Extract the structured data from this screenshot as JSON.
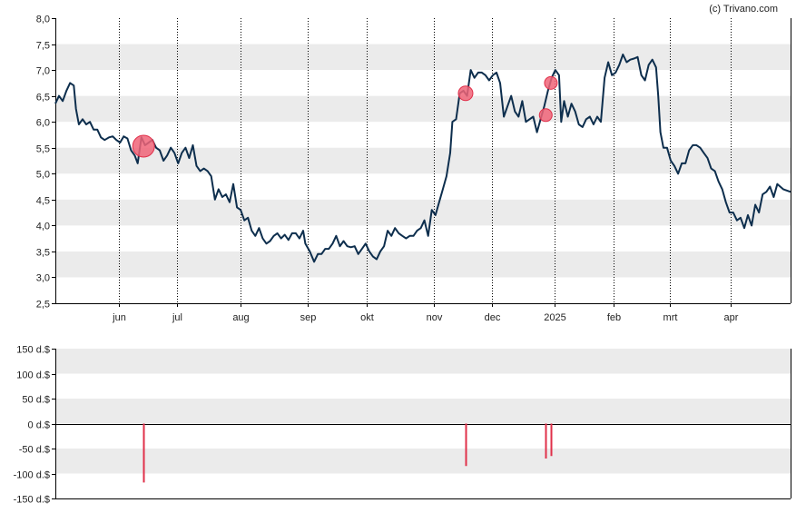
{
  "credit": "(c) Trivano.com",
  "colors": {
    "price_line": "#0d2e4d",
    "band": "#ebebeb",
    "marker_fill": "#f06478",
    "marker_stroke": "#e0304a",
    "volume_bar": "#e0304a",
    "axis": "#000000",
    "grid_dotted": "#000000"
  },
  "chart_data": [
    {
      "type": "line",
      "title": "",
      "xlabel": "",
      "ylabel": "",
      "ylim": [
        2.5,
        8.0
      ],
      "y_ticks": [
        "2,5",
        "3,0",
        "3,5",
        "4,0",
        "4,5",
        "5,0",
        "5,5",
        "6,0",
        "6,5",
        "7,0",
        "7,5",
        "8,0"
      ],
      "x_ticks": [
        {
          "label": "jun",
          "t": 0.087
        },
        {
          "label": "jul",
          "t": 0.165
        },
        {
          "label": "aug",
          "t": 0.252
        },
        {
          "label": "sep",
          "t": 0.343
        },
        {
          "label": "okt",
          "t": 0.423
        },
        {
          "label": "nov",
          "t": 0.515
        },
        {
          "label": "dec",
          "t": 0.594
        },
        {
          "label": "2025",
          "t": 0.679
        },
        {
          "label": "feb",
          "t": 0.759
        },
        {
          "label": "mrt",
          "t": 0.836
        },
        {
          "label": "apr",
          "t": 0.918
        }
      ],
      "grid": true,
      "series": [
        {
          "points": [
            [
              0.0,
              6.35
            ],
            [
              0.005,
              6.5
            ],
            [
              0.01,
              6.4
            ],
            [
              0.015,
              6.6
            ],
            [
              0.02,
              6.75
            ],
            [
              0.025,
              6.7
            ],
            [
              0.028,
              6.25
            ],
            [
              0.032,
              5.95
            ],
            [
              0.037,
              6.05
            ],
            [
              0.042,
              5.95
            ],
            [
              0.047,
              6.0
            ],
            [
              0.052,
              5.85
            ],
            [
              0.057,
              5.85
            ],
            [
              0.062,
              5.7
            ],
            [
              0.067,
              5.65
            ],
            [
              0.073,
              5.7
            ],
            [
              0.078,
              5.72
            ],
            [
              0.083,
              5.65
            ],
            [
              0.088,
              5.6
            ],
            [
              0.093,
              5.72
            ],
            [
              0.098,
              5.68
            ],
            [
              0.103,
              5.45
            ],
            [
              0.108,
              5.35
            ],
            [
              0.112,
              5.2
            ],
            [
              0.117,
              5.7
            ],
            [
              0.122,
              5.55
            ],
            [
              0.127,
              5.6
            ],
            [
              0.132,
              5.65
            ],
            [
              0.137,
              5.5
            ],
            [
              0.142,
              5.45
            ],
            [
              0.147,
              5.25
            ],
            [
              0.152,
              5.35
            ],
            [
              0.157,
              5.5
            ],
            [
              0.162,
              5.4
            ],
            [
              0.167,
              5.2
            ],
            [
              0.172,
              5.4
            ],
            [
              0.177,
              5.5
            ],
            [
              0.182,
              5.3
            ],
            [
              0.187,
              5.55
            ],
            [
              0.192,
              5.15
            ],
            [
              0.197,
              5.05
            ],
            [
              0.202,
              5.1
            ],
            [
              0.207,
              5.05
            ],
            [
              0.212,
              4.95
            ],
            [
              0.217,
              4.5
            ],
            [
              0.222,
              4.7
            ],
            [
              0.227,
              4.55
            ],
            [
              0.232,
              4.6
            ],
            [
              0.237,
              4.45
            ],
            [
              0.242,
              4.8
            ],
            [
              0.247,
              4.35
            ],
            [
              0.252,
              4.3
            ],
            [
              0.257,
              4.1
            ],
            [
              0.262,
              4.15
            ],
            [
              0.267,
              3.9
            ],
            [
              0.272,
              3.8
            ],
            [
              0.277,
              3.95
            ],
            [
              0.282,
              3.75
            ],
            [
              0.287,
              3.65
            ],
            [
              0.292,
              3.7
            ],
            [
              0.297,
              3.8
            ],
            [
              0.302,
              3.85
            ],
            [
              0.307,
              3.75
            ],
            [
              0.312,
              3.82
            ],
            [
              0.317,
              3.72
            ],
            [
              0.322,
              3.85
            ],
            [
              0.327,
              3.85
            ],
            [
              0.332,
              3.75
            ],
            [
              0.337,
              3.9
            ],
            [
              0.34,
              3.65
            ],
            [
              0.346,
              3.5
            ],
            [
              0.352,
              3.3
            ],
            [
              0.357,
              3.45
            ],
            [
              0.362,
              3.45
            ],
            [
              0.367,
              3.55
            ],
            [
              0.372,
              3.55
            ],
            [
              0.377,
              3.65
            ],
            [
              0.382,
              3.8
            ],
            [
              0.387,
              3.6
            ],
            [
              0.392,
              3.7
            ],
            [
              0.397,
              3.6
            ],
            [
              0.402,
              3.58
            ],
            [
              0.407,
              3.6
            ],
            [
              0.412,
              3.45
            ],
            [
              0.417,
              3.55
            ],
            [
              0.422,
              3.65
            ],
            [
              0.427,
              3.5
            ],
            [
              0.432,
              3.4
            ],
            [
              0.437,
              3.35
            ],
            [
              0.442,
              3.5
            ],
            [
              0.447,
              3.6
            ],
            [
              0.452,
              3.9
            ],
            [
              0.457,
              3.8
            ],
            [
              0.462,
              3.95
            ],
            [
              0.467,
              3.85
            ],
            [
              0.472,
              3.8
            ],
            [
              0.477,
              3.75
            ],
            [
              0.482,
              3.8
            ],
            [
              0.487,
              3.8
            ],
            [
              0.492,
              3.9
            ],
            [
              0.497,
              3.95
            ],
            [
              0.502,
              4.1
            ],
            [
              0.507,
              3.8
            ],
            [
              0.512,
              4.3
            ],
            [
              0.517,
              4.2
            ],
            [
              0.522,
              4.45
            ],
            [
              0.527,
              4.7
            ],
            [
              0.532,
              4.95
            ],
            [
              0.537,
              5.4
            ],
            [
              0.54,
              6.0
            ],
            [
              0.545,
              6.05
            ],
            [
              0.55,
              6.55
            ],
            [
              0.555,
              6.6
            ],
            [
              0.56,
              6.5
            ],
            [
              0.565,
              7.0
            ],
            [
              0.57,
              6.85
            ],
            [
              0.575,
              6.95
            ],
            [
              0.58,
              6.95
            ],
            [
              0.585,
              6.9
            ],
            [
              0.59,
              6.8
            ],
            [
              0.595,
              6.9
            ],
            [
              0.6,
              6.95
            ],
            [
              0.605,
              6.75
            ],
            [
              0.61,
              6.1
            ],
            [
              0.615,
              6.3
            ],
            [
              0.62,
              6.5
            ],
            [
              0.625,
              6.2
            ],
            [
              0.63,
              6.1
            ],
            [
              0.635,
              6.4
            ],
            [
              0.64,
              6.0
            ],
            [
              0.645,
              6.05
            ],
            [
              0.65,
              6.1
            ],
            [
              0.655,
              5.8
            ],
            [
              0.66,
              6.05
            ],
            [
              0.665,
              6.3
            ],
            [
              0.67,
              6.6
            ],
            [
              0.675,
              6.85
            ],
            [
              0.68,
              7.0
            ],
            [
              0.685,
              6.9
            ],
            [
              0.688,
              6.0
            ],
            [
              0.692,
              6.4
            ],
            [
              0.697,
              6.1
            ],
            [
              0.702,
              6.35
            ],
            [
              0.707,
              6.2
            ],
            [
              0.712,
              5.95
            ],
            [
              0.717,
              5.9
            ],
            [
              0.722,
              6.05
            ],
            [
              0.727,
              6.1
            ],
            [
              0.732,
              5.95
            ],
            [
              0.737,
              6.1
            ],
            [
              0.742,
              6.0
            ],
            [
              0.747,
              6.85
            ],
            [
              0.752,
              7.15
            ],
            [
              0.757,
              6.9
            ],
            [
              0.762,
              6.95
            ],
            [
              0.767,
              7.1
            ],
            [
              0.772,
              7.3
            ],
            [
              0.777,
              7.15
            ],
            [
              0.782,
              7.2
            ],
            [
              0.787,
              7.22
            ],
            [
              0.792,
              7.25
            ],
            [
              0.797,
              6.9
            ],
            [
              0.802,
              6.8
            ],
            [
              0.807,
              7.1
            ],
            [
              0.812,
              7.2
            ],
            [
              0.817,
              7.05
            ],
            [
              0.82,
              6.5
            ],
            [
              0.823,
              5.8
            ],
            [
              0.827,
              5.5
            ],
            [
              0.832,
              5.5
            ],
            [
              0.837,
              5.25
            ],
            [
              0.842,
              5.15
            ],
            [
              0.847,
              5.0
            ],
            [
              0.852,
              5.2
            ],
            [
              0.857,
              5.2
            ],
            [
              0.862,
              5.45
            ],
            [
              0.867,
              5.55
            ],
            [
              0.872,
              5.55
            ],
            [
              0.877,
              5.5
            ],
            [
              0.882,
              5.4
            ],
            [
              0.887,
              5.3
            ],
            [
              0.892,
              5.1
            ],
            [
              0.897,
              5.05
            ],
            [
              0.902,
              4.85
            ],
            [
              0.907,
              4.7
            ],
            [
              0.912,
              4.45
            ],
            [
              0.917,
              4.25
            ],
            [
              0.922,
              4.25
            ],
            [
              0.927,
              4.1
            ],
            [
              0.932,
              4.15
            ],
            [
              0.937,
              3.95
            ],
            [
              0.942,
              4.2
            ],
            [
              0.947,
              4.0
            ],
            [
              0.952,
              4.4
            ],
            [
              0.957,
              4.25
            ],
            [
              0.962,
              4.6
            ],
            [
              0.967,
              4.65
            ],
            [
              0.972,
              4.75
            ],
            [
              0.977,
              4.55
            ],
            [
              0.982,
              4.8
            ],
            [
              0.99,
              4.7
            ],
            [
              1.0,
              4.65
            ]
          ]
        }
      ],
      "markers": [
        {
          "t": 0.12,
          "y": 5.53,
          "size": "large"
        },
        {
          "t": 0.558,
          "y": 6.55,
          "size": "medium"
        },
        {
          "t": 0.667,
          "y": 6.13,
          "size": "small"
        },
        {
          "t": 0.674,
          "y": 6.75,
          "size": "small"
        }
      ]
    },
    {
      "type": "bar",
      "title": "",
      "xlabel": "",
      "ylabel": "",
      "ylim": [
        -150,
        150
      ],
      "y_ticks": [
        "150 d.$",
        "100 d.$",
        "50 d.$",
        "0 d.$",
        "-50 d.$",
        "-100 d.$",
        "-150 d.$"
      ],
      "grid": true,
      "series": [
        {
          "bars": [
            {
              "t": 0.12,
              "value": -118
            },
            {
              "t": 0.558,
              "value": -85
            },
            {
              "t": 0.667,
              "value": -70
            },
            {
              "t": 0.674,
              "value": -65
            }
          ]
        }
      ]
    }
  ]
}
